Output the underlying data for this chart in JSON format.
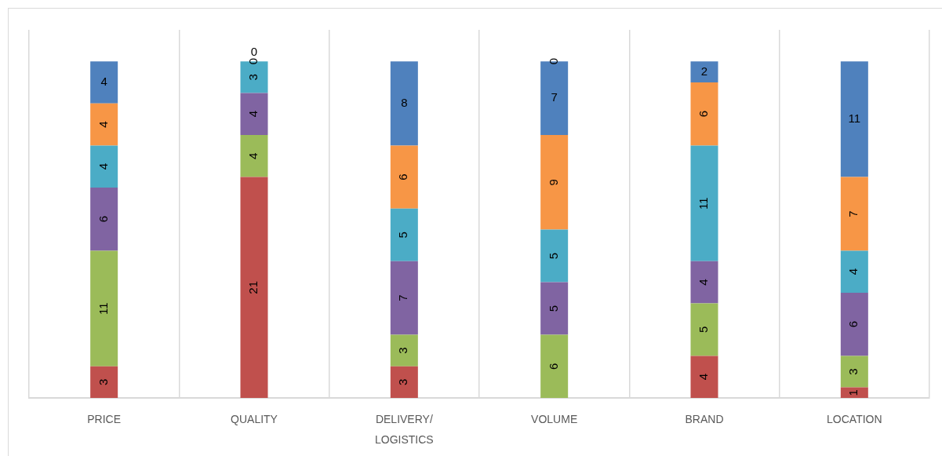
{
  "chart_data": {
    "type": "bar",
    "stacked": true,
    "categories": [
      "PRICE",
      "QUALITY",
      "DELIVERY/LOGISTICS",
      "VOLUME",
      "BRAND",
      "LOCATION"
    ],
    "series": [
      {
        "color": "#c0504d",
        "values": [
          3,
          21,
          3,
          0,
          4,
          1
        ]
      },
      {
        "color": "#9bbb59",
        "values": [
          11,
          4,
          3,
          6,
          5,
          3
        ]
      },
      {
        "color": "#8064a2",
        "values": [
          6,
          4,
          7,
          5,
          4,
          6
        ]
      },
      {
        "color": "#4bacc6",
        "values": [
          4,
          3,
          5,
          5,
          11,
          4
        ]
      },
      {
        "color": "#f79646",
        "values": [
          4,
          0,
          6,
          9,
          6,
          7
        ]
      },
      {
        "color": "#4f81bd",
        "values": [
          4,
          0,
          8,
          7,
          2,
          11
        ]
      }
    ],
    "ylim": [
      0,
      35
    ],
    "grid": "x",
    "tick_labels": "x",
    "data_labels": true
  }
}
